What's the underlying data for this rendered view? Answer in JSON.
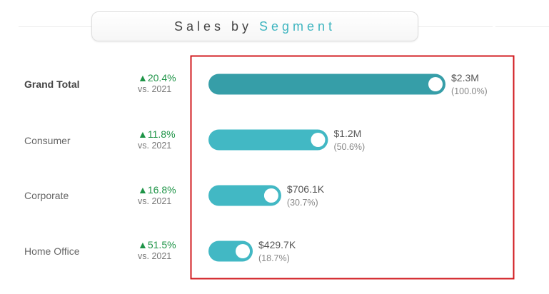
{
  "title": {
    "part1": "Sales",
    "part2": "by",
    "part3": "Segment"
  },
  "colors": {
    "total_bar": "#369ea8",
    "segment_bar": "#42b8c4",
    "accent": "#3fb5c0",
    "positive": "#1e9447",
    "highlight_box": "#d1191e"
  },
  "rows": [
    {
      "label": "Grand Total",
      "delta": "▲20.4%",
      "vs": "vs. 2021",
      "value_label": "$2.3M",
      "pct_label": "(100.0%)"
    },
    {
      "label": "Consumer",
      "delta": "▲11.8%",
      "vs": "vs. 2021",
      "value_label": "$1.2M",
      "pct_label": "(50.6%)"
    },
    {
      "label": "Corporate",
      "delta": "▲16.8%",
      "vs": "vs. 2021",
      "value_label": "$706.1K",
      "pct_label": "(30.7%)"
    },
    {
      "label": "Home Office",
      "delta": "▲51.5%",
      "vs": "vs. 2021",
      "value_label": "$429.7K",
      "pct_label": "(18.7%)"
    }
  ],
  "chart_data": {
    "type": "bar",
    "orientation": "horizontal",
    "categories": [
      "Grand Total",
      "Consumer",
      "Corporate",
      "Home Office"
    ],
    "values": [
      2300000,
      1160000,
      706100,
      429700
    ],
    "percent_of_total": [
      100.0,
      50.6,
      30.7,
      18.7
    ],
    "title": "Sales by Segment",
    "xlabel": "",
    "ylabel": "",
    "grid": false
  }
}
